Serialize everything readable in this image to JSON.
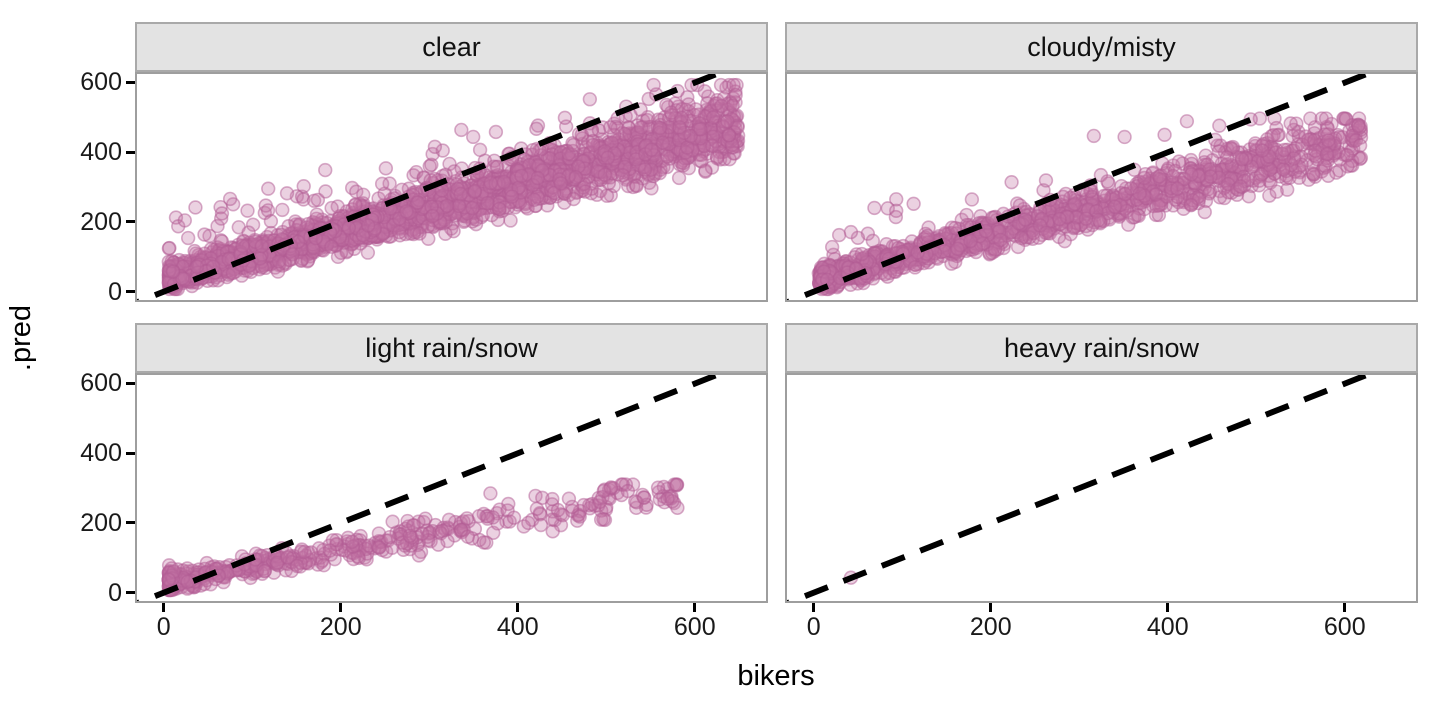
{
  "axes": {
    "x_title": "bikers",
    "y_title": ".pred",
    "x_ticks": [
      0,
      200,
      400,
      600
    ],
    "y_ticks": [
      0,
      200,
      400,
      600
    ]
  },
  "style": {
    "point_fill": "rgba(194,114,165,0.33)",
    "point_stroke": "rgba(178,92,148,0.5)",
    "point_radius": 6.5,
    "line_color": "#000000",
    "strip_bg": "#E3E3E3",
    "panel_border": "#9E9E9E",
    "tick_color": "#000000"
  },
  "chart_data": {
    "type": "scatter",
    "title": "",
    "xlabel": "bikers",
    "ylabel": ".pred",
    "x_range": [
      0,
      650
    ],
    "y_range": [
      0,
      600
    ],
    "grid": false,
    "legend": "none",
    "reference_line": {
      "type": "identity",
      "style": "dashed",
      "color": "#000000",
      "width": 6
    },
    "facets": [
      {
        "label": "clear",
        "row": 0,
        "col": 0,
        "generator": {
          "seed": 11,
          "n": 2600,
          "xmax": 655,
          "xpow": 1.4,
          "mix_uniform": 0.45,
          "intercept": 35,
          "slope": 0.68,
          "noise0": 55,
          "noise1": 0.14,
          "out_frac": 0.05,
          "out_max": 175,
          "ymin": 2,
          "ymax": 598
        }
      },
      {
        "label": "cloudy/misty",
        "row": 0,
        "col": 1,
        "generator": {
          "seed": 22,
          "n": 1400,
          "xmax": 625,
          "xpow": 1.5,
          "mix_uniform": 0.4,
          "intercept": 30,
          "slope": 0.66,
          "noise0": 50,
          "noise1": 0.13,
          "out_frac": 0.05,
          "out_max": 155,
          "ymin": 2,
          "ymax": 500
        }
      },
      {
        "label": "light rain/snow",
        "row": 1,
        "col": 0,
        "generator": {
          "seed": 33,
          "n": 500,
          "xmax": 585,
          "xpow": 2.2,
          "mix_uniform": 0.2,
          "intercept": 25,
          "slope": 0.46,
          "noise0": 38,
          "noise1": 0.1,
          "out_frac": 0.03,
          "out_max": 60,
          "ymin": 2,
          "ymax": 310
        }
      },
      {
        "label": "heavy rain/snow",
        "row": 1,
        "col": 1,
        "points": [
          [
            37,
            38
          ]
        ]
      }
    ]
  }
}
